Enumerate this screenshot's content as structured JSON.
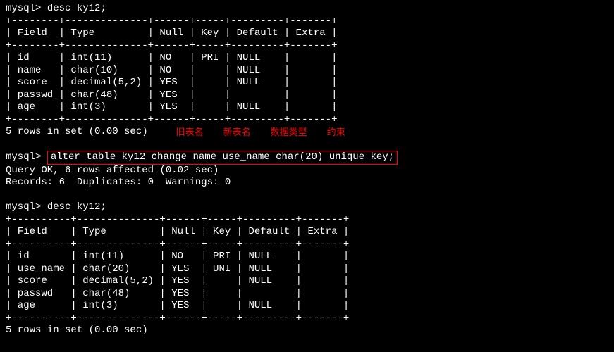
{
  "prompt": "mysql>",
  "cmd_desc1": "desc ky12;",
  "table1": {
    "sep": "+--------+--------------+------+-----+---------+-------+",
    "header": "| Field  | Type         | Null | Key | Default | Extra |",
    "rows": [
      "| id     | int(11)      | NO   | PRI | NULL    |       |",
      "| name   | char(10)     | NO   |     | NULL    |       |",
      "| score  | decimal(5,2) | YES  |     | NULL    |       |",
      "| passwd | char(48)     | YES  |     |         |       |",
      "| age    | int(3)       | YES  |     | NULL    |       |"
    ]
  },
  "result1": "5 rows in set (0.00 sec)",
  "annotations": {
    "a1": "旧表名",
    "a2": "新表名",
    "a3": "数据类型",
    "a4": "约束"
  },
  "cmd_alter": "alter table ky12 change name use_name char(20) unique key;",
  "alter_resp1": "Query OK, 6 rows affected (0.02 sec)",
  "alter_resp2": "Records: 6  Duplicates: 0  Warnings: 0",
  "cmd_desc2": "desc ky12;",
  "table2": {
    "sep": "+----------+--------------+------+-----+---------+-------+",
    "header": "| Field    | Type         | Null | Key | Default | Extra |",
    "rows": [
      "| id       | int(11)      | NO   | PRI | NULL    |       |",
      "| use_name | char(20)     | YES  | UNI | NULL    |       |",
      "| score    | decimal(5,2) | YES  |     | NULL    |       |",
      "| passwd   | char(48)     | YES  |     |         |       |",
      "| age      | int(3)       | YES  |     | NULL    |       |"
    ]
  },
  "result2": "5 rows in set (0.00 sec)"
}
